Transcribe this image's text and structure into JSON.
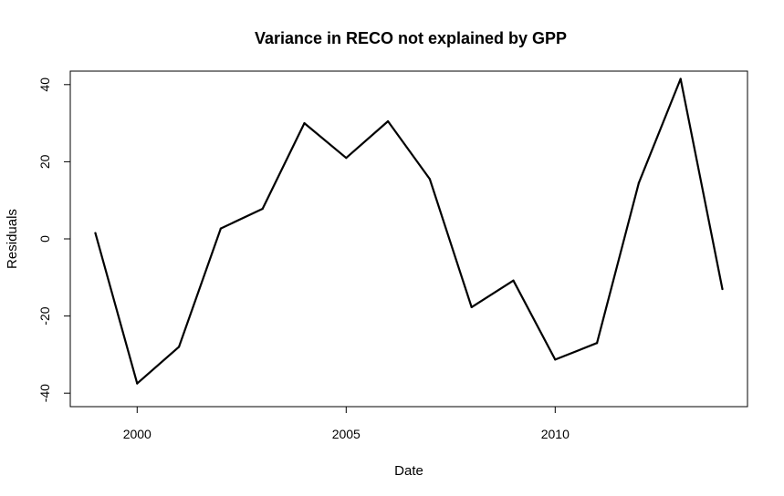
{
  "chart_data": {
    "type": "line",
    "title": "Variance in RECO not explained by GPP",
    "xlabel": "Date",
    "ylabel": "Residuals",
    "x": [
      1999,
      2000,
      2001,
      2002,
      2003,
      2004,
      2005,
      2006,
      2007,
      2008,
      2009,
      2010,
      2011,
      2012,
      2013,
      2014
    ],
    "series": [
      {
        "values": [
          1.5,
          -37.5,
          -28,
          2.7,
          7.8,
          30,
          21,
          30.5,
          15.5,
          -17.7,
          -10.8,
          -31.3,
          -27,
          14.5,
          41.5,
          -13
        ]
      }
    ],
    "xlim": [
      1998.4,
      2014.6
    ],
    "ylim": [
      -43.5,
      43.5
    ],
    "x_ticks": [
      2000,
      2005,
      2010
    ],
    "y_ticks": [
      -40,
      -20,
      0,
      20,
      40
    ],
    "x_tick_labels": [
      "2000",
      "2005",
      "2010"
    ],
    "y_tick_labels": [
      "-40",
      "-20",
      "0",
      "20",
      "40"
    ],
    "grid": false,
    "legend": "none",
    "line_color": "#000000"
  }
}
